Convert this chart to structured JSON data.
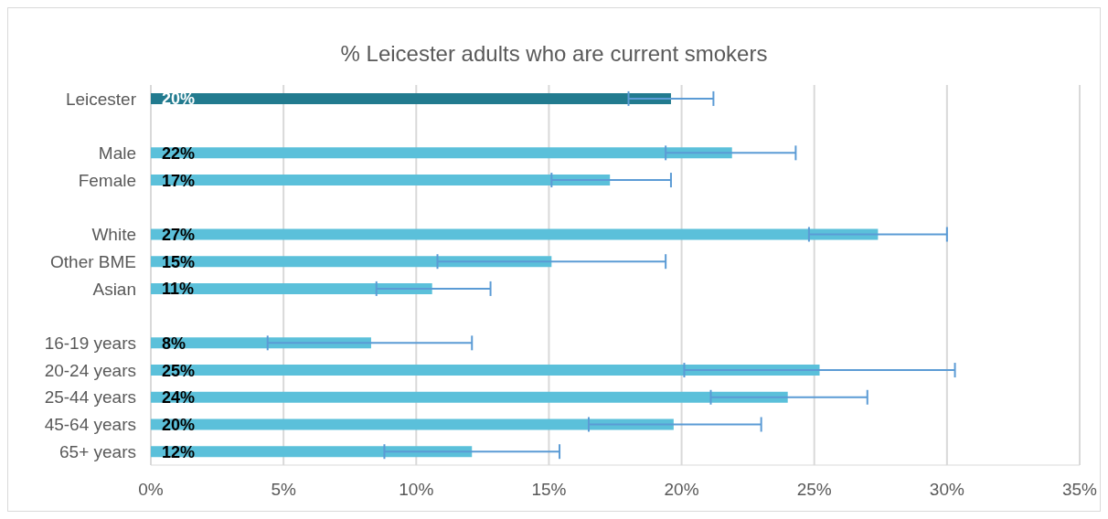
{
  "chart_data": {
    "type": "bar",
    "orientation": "horizontal",
    "title": "% Leicester adults who are current smokers",
    "categories": [
      "Leicester",
      null,
      "Male",
      "Female",
      null,
      "White",
      "Other BME",
      "Asian",
      null,
      "16-19 years",
      "20-24 years",
      "25-44 years",
      "45-64 years",
      "65+ years"
    ],
    "values": [
      19.6,
      null,
      21.9,
      17.3,
      null,
      27.4,
      15.1,
      10.6,
      null,
      8.3,
      25.2,
      24.0,
      19.7,
      12.1
    ],
    "colors": [
      "#227b8f",
      null,
      "#5bc0da",
      "#5bc0da",
      null,
      "#5bc0da",
      "#5bc0da",
      "#5bc0da",
      null,
      "#5bc0da",
      "#5bc0da",
      "#5bc0da",
      "#5bc0da",
      "#5bc0da"
    ],
    "value_labels": [
      "20%",
      null,
      "22%",
      "17%",
      null,
      "27%",
      "15%",
      "11%",
      null,
      "8%",
      "25%",
      "24%",
      "20%",
      "12%"
    ],
    "errors": [
      [
        18.0,
        21.2
      ],
      null,
      [
        19.4,
        24.3
      ],
      [
        15.1,
        19.6
      ],
      null,
      [
        24.8,
        30.0
      ],
      [
        10.8,
        19.4
      ],
      [
        8.5,
        12.8
      ],
      null,
      [
        4.4,
        12.1
      ],
      [
        20.1,
        30.3
      ],
      [
        21.1,
        27.0
      ],
      [
        16.5,
        23.0
      ],
      [
        8.8,
        15.4
      ]
    ],
    "xlim": [
      0,
      35
    ],
    "xticks": [
      {
        "value": 0,
        "label": "0%"
      },
      {
        "value": 5,
        "label": "5%"
      },
      {
        "value": 10,
        "label": "10%"
      },
      {
        "value": 15,
        "label": "15%"
      },
      {
        "value": 20,
        "label": "20%"
      },
      {
        "value": 25,
        "label": "25%"
      },
      {
        "value": 30,
        "label": "30%"
      },
      {
        "value": 35,
        "label": "35%"
      }
    ],
    "grid": "x",
    "legend": false
  }
}
